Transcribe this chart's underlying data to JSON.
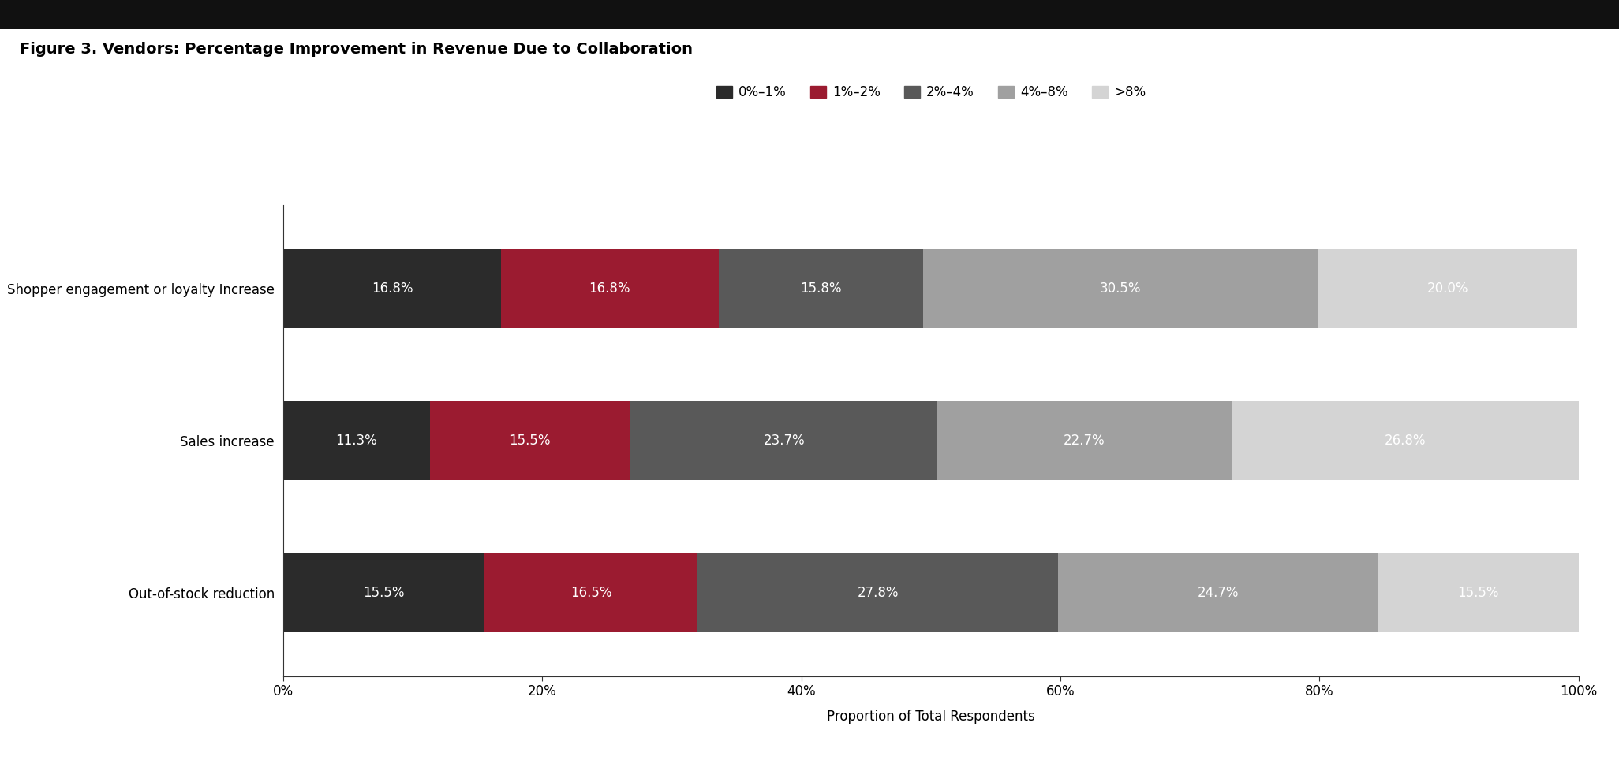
{
  "title": "Figure 3. Vendors: Percentage Improvement in Revenue Due to Collaboration",
  "categories": [
    "Shopper engagement or loyalty Increase",
    "Sales increase",
    "Out-of-stock reduction"
  ],
  "series": [
    {
      "label": "0%–1%",
      "color": "#2b2b2b",
      "values": [
        16.8,
        11.3,
        15.5
      ]
    },
    {
      "label": "1%–2%",
      "color": "#9b1b30",
      "values": [
        16.8,
        15.5,
        16.5
      ]
    },
    {
      "label": "2%–4%",
      "color": "#595959",
      "values": [
        15.8,
        23.7,
        27.8
      ]
    },
    {
      "label": "4%–8%",
      "color": "#a0a0a0",
      "values": [
        30.5,
        22.7,
        24.7
      ]
    },
    {
      "label": ">8%",
      "color": "#d4d4d4",
      "values": [
        20.0,
        26.8,
        15.5
      ]
    }
  ],
  "xlabel": "Proportion of Total Respondents",
  "xlim": [
    0,
    100
  ],
  "xtick_labels": [
    "0%",
    "20%",
    "40%",
    "60%",
    "80%",
    "100%"
  ],
  "xtick_values": [
    0,
    20,
    40,
    60,
    80,
    100
  ],
  "bar_height": 0.52,
  "background_color": "#ffffff",
  "title_fontsize": 14,
  "label_fontsize": 12,
  "tick_fontsize": 12,
  "legend_fontsize": 12,
  "value_fontsize": 12,
  "header_bar_color": "#111111",
  "header_bar_height": 0.038
}
